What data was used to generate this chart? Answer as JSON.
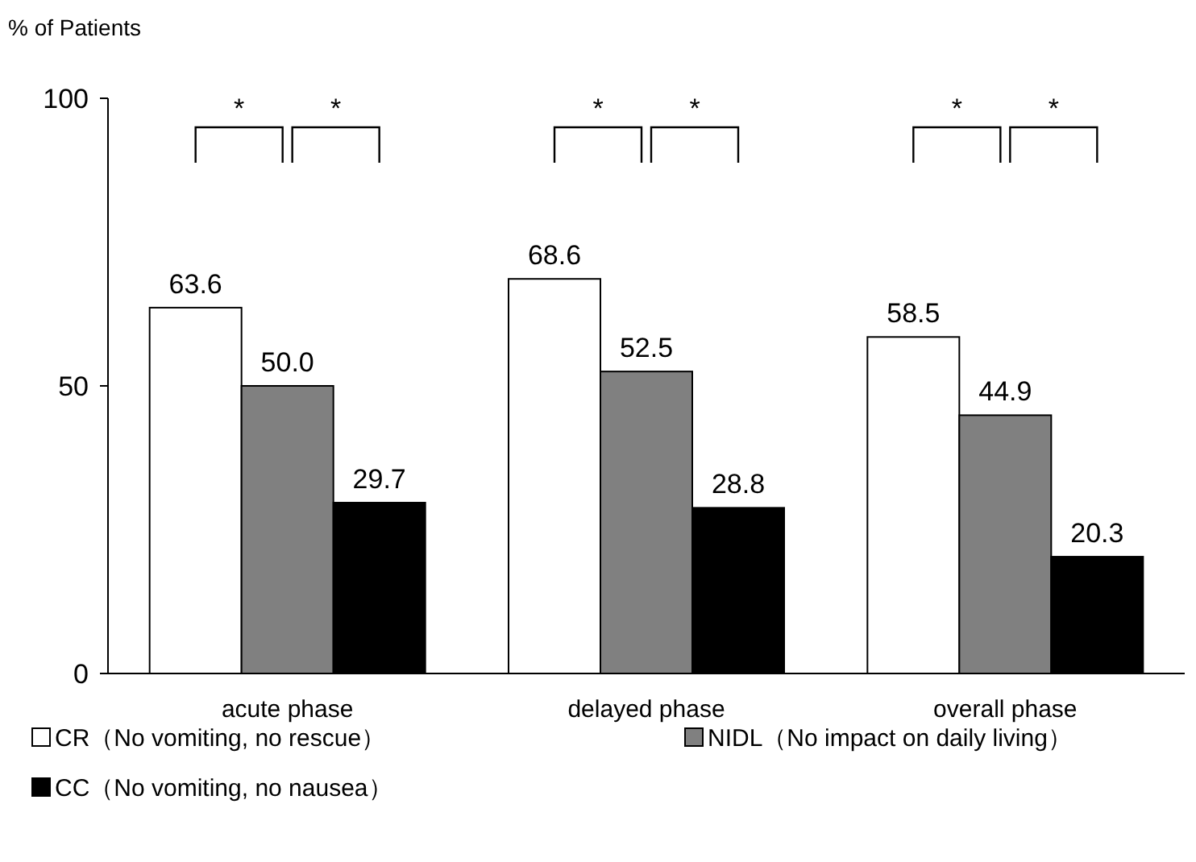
{
  "chart_data": {
    "type": "bar",
    "ylabel": "% of Patients",
    "categories": [
      "acute phase",
      "delayed phase",
      "overall phase"
    ],
    "series": [
      {
        "name": "CR（No vomiting, no rescue）",
        "color": "#ffffff",
        "values": [
          63.6,
          68.6,
          58.5
        ],
        "value_labels": [
          "63.6",
          "68.6",
          "58.5"
        ]
      },
      {
        "name": "NIDL（No impact on daily living）",
        "color": "#808080",
        "values": [
          50.0,
          52.5,
          44.9
        ],
        "value_labels": [
          "50.0",
          "52.5",
          "44.9"
        ]
      },
      {
        "name": "CC（No vomiting, no nausea）",
        "color": "#000000",
        "values": [
          29.7,
          28.8,
          20.3
        ],
        "value_labels": [
          "29.7",
          "28.8",
          "20.3"
        ]
      }
    ],
    "ylim": [
      0,
      100
    ],
    "yticks": [
      0,
      50,
      100
    ],
    "legend": "bottom",
    "grid": false,
    "annotations": [
      "*",
      "*",
      "*",
      "*",
      "*",
      "*"
    ]
  }
}
